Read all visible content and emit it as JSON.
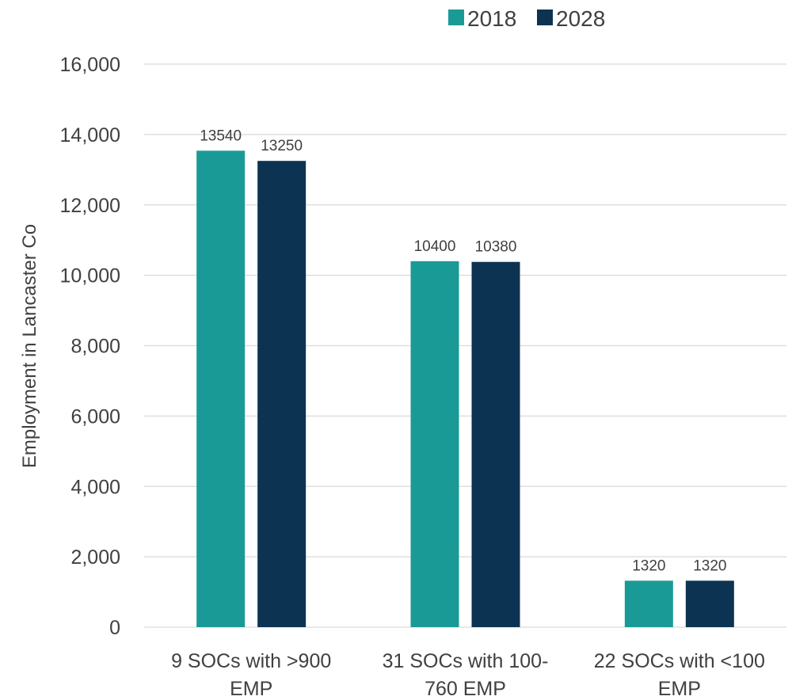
{
  "chart_data": {
    "type": "bar",
    "title": "",
    "xlabel": "",
    "ylabel": "Employment in Lancaster Co",
    "categories": [
      [
        "9 SOCs with >900",
        "EMP"
      ],
      [
        "31 SOCs with 100-",
        "760 EMP"
      ],
      [
        "22 SOCs with <100",
        "EMP"
      ]
    ],
    "series": [
      {
        "name": "2018",
        "color": "#1a9a96",
        "values": [
          13540,
          10400,
          1320
        ]
      },
      {
        "name": "2028",
        "color": "#0d3352",
        "values": [
          13250,
          10380,
          1320
        ]
      }
    ],
    "ylim": [
      0,
      16000
    ],
    "yticks": [
      0,
      2000,
      4000,
      6000,
      8000,
      10000,
      12000,
      14000,
      16000
    ],
    "ytick_labels": [
      "0",
      "2,000",
      "4,000",
      "6,000",
      "8,000",
      "10,000",
      "12,000",
      "14,000",
      "16,000"
    ],
    "data_labels": true,
    "grid": "horizontal",
    "legend_position": "top",
    "gridline_color": "#d9d9d9"
  }
}
